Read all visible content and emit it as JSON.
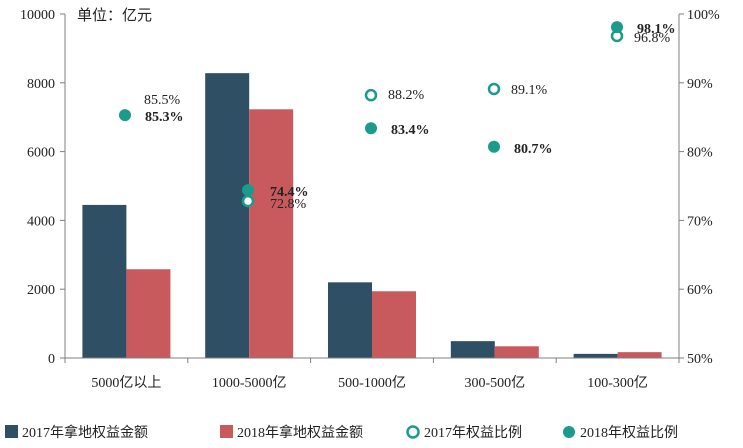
{
  "chart_data": {
    "type": "bar+scatter",
    "unit_label": "单位：亿元",
    "categories": [
      "5000亿以上",
      "1000-5000亿",
      "500-1000亿",
      "300-500亿",
      "100-300亿"
    ],
    "series": [
      {
        "name": "2017年拿地权益金额",
        "kind": "bar",
        "axis": "left",
        "color": "#2f4f64",
        "values": [
          4450,
          8280,
          2200,
          490,
          120
        ]
      },
      {
        "name": "2018年拿地权益金额",
        "kind": "bar",
        "axis": "left",
        "color": "#c85a5e",
        "values": [
          2580,
          7230,
          1940,
          340,
          170
        ]
      },
      {
        "name": "2017年权益比例",
        "kind": "scatter-hollow",
        "axis": "right",
        "color": "#1a9b8c",
        "values": [
          null,
          72.8,
          88.2,
          89.1,
          96.8
        ],
        "labels": [
          "85.5%",
          "72.8%",
          "88.2%",
          "89.1%",
          "96.8%"
        ]
      },
      {
        "name": "2018年权益比例",
        "kind": "scatter-filled",
        "axis": "right",
        "color": "#1a9b8c",
        "values": [
          85.3,
          74.4,
          83.4,
          80.7,
          98.1
        ],
        "labels": [
          "85.3%",
          "74.4%",
          "83.4%",
          "80.7%",
          "98.1%"
        ]
      }
    ],
    "y_left": {
      "min": 0,
      "max": 10000,
      "ticks": [
        "0",
        "2000",
        "4000",
        "6000",
        "8000",
        "10000"
      ]
    },
    "y_right": {
      "min": 50,
      "max": 100,
      "ticks": [
        "50%",
        "60%",
        "70%",
        "80%",
        "90%",
        "100%"
      ]
    },
    "legend_position": "bottom"
  }
}
